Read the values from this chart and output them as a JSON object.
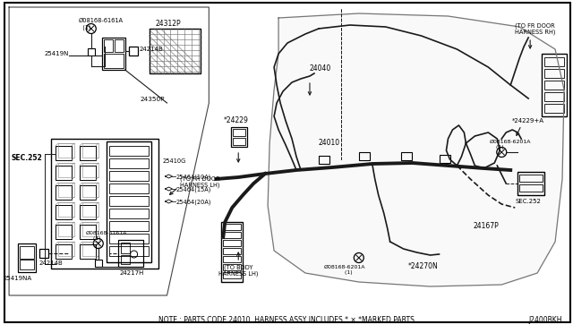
{
  "bg_color": "#ffffff",
  "line_color": "#1a1a1a",
  "note_text": "NOTE : PARTS CODE 24010  HARNESS ASSY INCLUDES * × *MARKED PARTS.",
  "diagram_code": "J2400BKH",
  "labels": {
    "08168_6161A_top": "Ø08168-6161A\n  (1)",
    "24312P": "24312P",
    "25419N": "25419N",
    "24214B_top": "24214B",
    "24350P": "24350P",
    "SEC252_left": "SEC.252",
    "25410G": "25410G",
    "25464_10A": "25464(10A)",
    "25464_15A": "25464(15A)",
    "25464_20A": "25464(20A)",
    "TO_FR_DOOR_LH": "(TO FR DOOR\nHARNESS LH)",
    "08168_6161A_bot": "Ø08168-6161A\n    (1)",
    "24214B_bot": "24214B",
    "24217H": "24217H",
    "25419NA": "25419NA",
    "TO_BODY_LH": "(TO BODY\nHARNESS LH)",
    "08168_6201A_bot": "Ø08168-6201A\n    (1)",
    "24270N": "*24270N",
    "24229": "*24229",
    "24010": "24010",
    "24040": "24040",
    "TO_FR_DOOR_RH": "(TO FR DOOR\nHARNESS RH)",
    "24229_A": "*24229+A",
    "08168_6201A_right": "Ø08168-6201A\n    (1)",
    "SEC252_right": "SEC.252",
    "24167P": "24167P"
  }
}
